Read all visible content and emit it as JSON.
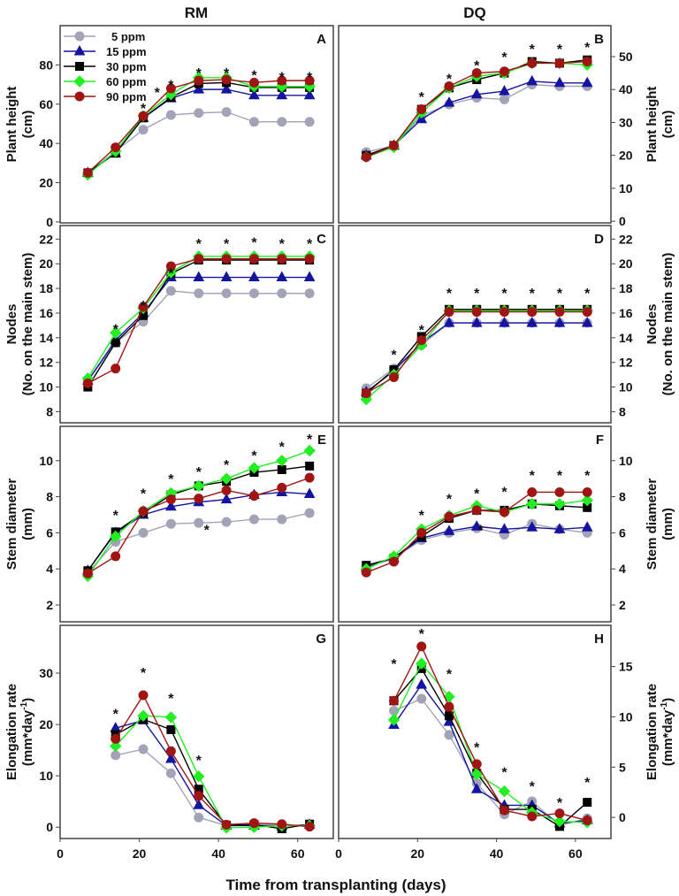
{
  "titles": {
    "left": "RM",
    "right": "DQ"
  },
  "xlabel": "Time from transplanting (days)",
  "series_style": [
    {
      "name": "5 ppm",
      "color": "#a3a3b8",
      "marker": "circle"
    },
    {
      "name": "15 ppm",
      "color": "#1414a0",
      "marker": "triangle"
    },
    {
      "name": "30 ppm",
      "color": "#000000",
      "marker": "square"
    },
    {
      "name": "60 ppm",
      "color": "#22ee22",
      "marker": "diamond"
    },
    {
      "name": "90 ppm",
      "color": "#a01414",
      "marker": "circle"
    }
  ],
  "chart_data": [
    {
      "panel": "A",
      "type": "line",
      "cultivar": "RM",
      "ylabel": [
        "Plant height",
        "(cm)"
      ],
      "yaxis_side": "left",
      "xlim": [
        0,
        69
      ],
      "ylim": [
        -0.5,
        100
      ],
      "yticks": [
        0,
        20,
        40,
        60,
        80
      ],
      "xticks": [
        0,
        20,
        40,
        60
      ],
      "x": [
        7,
        14,
        21,
        28,
        35,
        42,
        49,
        56,
        63
      ],
      "series": [
        {
          "name": "5 ppm",
          "values": [
            25,
            36,
            47,
            54.5,
            55.5,
            56,
            51,
            51,
            51
          ]
        },
        {
          "name": "15 ppm",
          "values": [
            25,
            35,
            53,
            63,
            67.5,
            67.5,
            64.5,
            64.5,
            64.5
          ]
        },
        {
          "name": "30 ppm",
          "values": [
            25,
            35,
            53,
            63.5,
            70.5,
            71,
            68.5,
            68.5,
            68.5
          ]
        },
        {
          "name": "60 ppm",
          "values": [
            24,
            36,
            54,
            65,
            73.5,
            73.5,
            69,
            69,
            69
          ]
        },
        {
          "name": "90 ppm",
          "values": [
            25,
            38,
            54,
            68,
            72,
            72.5,
            71,
            72,
            72
          ]
        }
      ],
      "significance": [
        [
          21,
          59
        ],
        [
          24.5,
          67
        ],
        [
          28,
          71
        ],
        [
          35,
          77
        ],
        [
          42,
          77
        ],
        [
          49,
          76
        ],
        [
          56,
          75
        ],
        [
          63,
          75
        ]
      ],
      "legend": "top-left"
    },
    {
      "panel": "B",
      "type": "line",
      "cultivar": "DQ",
      "ylabel": [
        "Plant height",
        "(cm)"
      ],
      "yaxis_side": "right",
      "xlim": [
        0,
        69
      ],
      "ylim": [
        -0.5,
        59.4
      ],
      "yticks": [
        0,
        10,
        20,
        30,
        40,
        50
      ],
      "xticks": [
        0,
        20,
        40,
        60
      ],
      "x": [
        7,
        14,
        21,
        28,
        35,
        42,
        49,
        56,
        63
      ],
      "series": [
        {
          "name": "5 ppm",
          "values": [
            21,
            23,
            32,
            35.5,
            37.5,
            37,
            41.5,
            41,
            41
          ]
        },
        {
          "name": "15 ppm",
          "values": [
            20,
            23,
            31,
            36,
            38.5,
            39.5,
            42.5,
            42,
            42
          ]
        },
        {
          "name": "30 ppm",
          "values": [
            20,
            23,
            34,
            40.5,
            43,
            45,
            48.5,
            48,
            49
          ]
        },
        {
          "name": "60 ppm",
          "values": [
            19.5,
            22.5,
            33,
            40.5,
            44,
            45,
            48,
            48,
            47.5
          ]
        },
        {
          "name": "90 ppm",
          "values": [
            19.5,
            23,
            34,
            41,
            45,
            45.5,
            48,
            48,
            48.5
          ]
        }
      ],
      "significance": [
        [
          21,
          38.5
        ],
        [
          28,
          44
        ],
        [
          35,
          48
        ],
        [
          42,
          50.5
        ],
        [
          49,
          53
        ],
        [
          56,
          53
        ],
        [
          63,
          53.5
        ]
      ]
    },
    {
      "panel": "C",
      "type": "line",
      "cultivar": "RM",
      "ylabel": [
        "Nodes",
        "(No. on the main stem)"
      ],
      "yaxis_side": "left",
      "xlim": [
        0,
        69
      ],
      "ylim": [
        7.1,
        23.1
      ],
      "yticks": [
        8,
        10,
        12,
        14,
        16,
        18,
        20,
        22
      ],
      "xticks": [
        0,
        20,
        40,
        60
      ],
      "x": [
        7,
        14,
        21,
        28,
        35,
        42,
        49,
        56,
        63
      ],
      "series": [
        {
          "name": "5 ppm",
          "values": [
            10.5,
            13.6,
            15.3,
            17.8,
            17.6,
            17.6,
            17.6,
            17.6,
            17.6
          ]
        },
        {
          "name": "15 ppm",
          "values": [
            10.5,
            13.8,
            16,
            18.9,
            18.9,
            18.9,
            18.9,
            18.9,
            18.9
          ]
        },
        {
          "name": "30 ppm",
          "values": [
            10,
            13.6,
            15.8,
            19.2,
            20.3,
            20.3,
            20.3,
            20.3,
            20.3
          ]
        },
        {
          "name": "60 ppm",
          "values": [
            10.7,
            14.4,
            16.4,
            19.3,
            20.6,
            20.6,
            20.6,
            20.6,
            20.6
          ]
        },
        {
          "name": "90 ppm",
          "values": [
            10.3,
            11.5,
            16.5,
            19.8,
            20.4,
            20.4,
            20.4,
            20.4,
            20.4
          ]
        }
      ],
      "significance": [
        [
          14,
          14.9
        ],
        [
          21,
          16.8
        ],
        [
          28,
          19.4
        ],
        [
          35,
          21.8
        ],
        [
          42,
          21.8
        ],
        [
          49,
          21.9
        ],
        [
          56,
          21.8
        ],
        [
          63,
          21.8
        ]
      ]
    },
    {
      "panel": "D",
      "type": "line",
      "cultivar": "DQ",
      "ylabel": [
        "Nodes",
        "(No. on the main stem)"
      ],
      "yaxis_side": "right",
      "xlim": [
        0,
        69
      ],
      "ylim": [
        7.1,
        23.1
      ],
      "yticks": [
        8,
        10,
        12,
        14,
        16,
        18,
        20,
        22
      ],
      "xticks": [
        0,
        20,
        40,
        60
      ],
      "x": [
        7,
        14,
        21,
        28,
        35,
        42,
        49,
        56,
        63
      ],
      "series": [
        {
          "name": "5 ppm",
          "values": [
            9.9,
            11.5,
            13.4,
            15.2,
            15.2,
            15.2,
            15.2,
            15.2,
            15.2
          ]
        },
        {
          "name": "15 ppm",
          "values": [
            9.6,
            11.3,
            13.6,
            15.2,
            15.2,
            15.2,
            15.2,
            15.2,
            15.2
          ]
        },
        {
          "name": "30 ppm",
          "values": [
            9.5,
            11.4,
            14.1,
            16.3,
            16.3,
            16.3,
            16.3,
            16.3,
            16.3
          ]
        },
        {
          "name": "60 ppm",
          "values": [
            9.0,
            11.0,
            13.4,
            16.2,
            16.2,
            16.2,
            16.2,
            16.2,
            16.2
          ]
        },
        {
          "name": "90 ppm",
          "values": [
            9.5,
            10.8,
            13.8,
            16.1,
            16.1,
            16.1,
            16.1,
            16.1,
            16.1
          ]
        }
      ],
      "significance": [
        [
          14,
          12.8
        ],
        [
          21,
          14.8
        ],
        [
          28,
          17.8
        ],
        [
          35,
          17.8
        ],
        [
          42,
          17.8
        ],
        [
          49,
          17.8
        ],
        [
          56,
          17.8
        ],
        [
          63,
          17.8
        ]
      ]
    },
    {
      "panel": "E",
      "type": "line",
      "cultivar": "RM",
      "ylabel": [
        "Stem diameter",
        "(mm)"
      ],
      "yaxis_side": "left",
      "xlim": [
        0,
        69
      ],
      "ylim": [
        1.07,
        11.9
      ],
      "yticks": [
        2,
        4,
        6,
        8,
        10
      ],
      "xticks": [
        0,
        20,
        40,
        60
      ],
      "x": [
        7,
        14,
        21,
        28,
        35,
        42,
        49,
        56,
        63
      ],
      "series": [
        {
          "name": "5 ppm",
          "values": [
            3.8,
            5.5,
            6.0,
            6.5,
            6.55,
            6.6,
            6.75,
            6.75,
            7.1
          ]
        },
        {
          "name": "15 ppm",
          "values": [
            3.9,
            6.0,
            7.0,
            7.45,
            7.7,
            7.85,
            8.1,
            8.25,
            8.15
          ]
        },
        {
          "name": "30 ppm",
          "values": [
            3.9,
            6.05,
            7.1,
            8.1,
            8.6,
            8.85,
            9.35,
            9.5,
            9.7
          ]
        },
        {
          "name": "60 ppm",
          "values": [
            3.6,
            5.8,
            7.2,
            8.2,
            8.6,
            9.0,
            9.6,
            10.0,
            10.55
          ]
        },
        {
          "name": "90 ppm",
          "values": [
            3.75,
            4.7,
            7.2,
            7.85,
            7.9,
            8.35,
            8.05,
            8.5,
            9.05
          ]
        }
      ],
      "significance": [
        [
          14,
          7.1
        ],
        [
          21,
          8.3
        ],
        [
          28,
          9.1
        ],
        [
          35,
          9.5
        ],
        [
          42,
          9.9
        ],
        [
          49,
          10.4
        ],
        [
          56,
          10.9
        ],
        [
          63,
          11.3
        ],
        [
          37,
          6.3
        ]
      ]
    },
    {
      "panel": "F",
      "type": "line",
      "cultivar": "DQ",
      "ylabel": [
        "Stem diameter",
        "(mm)"
      ],
      "yaxis_side": "right",
      "xlim": [
        0,
        69
      ],
      "ylim": [
        1.07,
        11.9
      ],
      "yticks": [
        2,
        4,
        6,
        8,
        10
      ],
      "xticks": [
        0,
        20,
        40,
        60
      ],
      "x": [
        7,
        14,
        21,
        28,
        35,
        42,
        49,
        56,
        63
      ],
      "series": [
        {
          "name": "5 ppm",
          "values": [
            4.1,
            4.6,
            5.6,
            6.0,
            6.25,
            5.9,
            6.5,
            6.2,
            6.0
          ]
        },
        {
          "name": "15 ppm",
          "values": [
            4.1,
            4.6,
            5.7,
            6.1,
            6.35,
            6.2,
            6.3,
            6.2,
            6.3
          ]
        },
        {
          "name": "30 ppm",
          "values": [
            4.2,
            4.6,
            5.8,
            6.8,
            7.25,
            7.25,
            7.6,
            7.5,
            7.4
          ]
        },
        {
          "name": "60 ppm",
          "values": [
            4.0,
            4.7,
            6.2,
            6.95,
            7.5,
            7.15,
            7.6,
            7.6,
            7.8
          ]
        },
        {
          "name": "90 ppm",
          "values": [
            3.8,
            4.4,
            6.0,
            6.9,
            7.25,
            7.15,
            8.25,
            8.25,
            8.25
          ]
        }
      ],
      "significance": [
        [
          21,
          7.1
        ],
        [
          28,
          8.0
        ],
        [
          35,
          8.3
        ],
        [
          42,
          8.4
        ],
        [
          49,
          9.3
        ],
        [
          56,
          9.3
        ],
        [
          63,
          9.3
        ],
        [
          36,
          6.3
        ]
      ]
    },
    {
      "panel": "G",
      "type": "line",
      "cultivar": "RM",
      "ylabel": [
        "Elongation rate",
        "(mm*day",
        "-1",
        ")"
      ],
      "yaxis_side": "left",
      "xlim": [
        0,
        69
      ],
      "ylim": [
        -2.2,
        39.3
      ],
      "yticks": [
        0,
        10,
        20,
        30
      ],
      "xticks": [
        0,
        20,
        40,
        60
      ],
      "x": [
        14,
        21,
        28,
        35,
        42,
        49,
        56,
        63
      ],
      "series": [
        {
          "name": "5 ppm",
          "values": [
            14,
            15.2,
            10.5,
            1.9,
            0.3,
            0.5,
            0.4,
            0.3
          ]
        },
        {
          "name": "15 ppm",
          "values": [
            19.3,
            20.8,
            13.3,
            4.3,
            0.3,
            0.3,
            0.2,
            0.5
          ]
        },
        {
          "name": "30 ppm",
          "values": [
            18,
            21,
            19,
            7.4,
            0.4,
            0.5,
            -0.3,
            0.6
          ]
        },
        {
          "name": "60 ppm",
          "values": [
            15.8,
            21.7,
            21.4,
            9.9,
            -0.1,
            0,
            0.3,
            0.3
          ]
        },
        {
          "name": "90 ppm",
          "values": [
            17.2,
            25.7,
            14.8,
            6.1,
            0.5,
            0.8,
            0.6,
            0.1
          ]
        }
      ],
      "significance": [
        [
          14,
          22.5
        ],
        [
          21,
          30.5
        ],
        [
          28,
          25.5
        ],
        [
          35,
          13.5
        ]
      ]
    },
    {
      "panel": "H",
      "type": "line",
      "cultivar": "DQ",
      "ylabel": [
        "Elongation rate",
        "(mm*day",
        "-1",
        ")"
      ],
      "yaxis_side": "right",
      "xlim": [
        0,
        69
      ],
      "ylim": [
        -2.1,
        19.1
      ],
      "yticks": [
        0,
        5,
        10,
        15
      ],
      "xticks": [
        0,
        20,
        40,
        60
      ],
      "x": [
        14,
        21,
        28,
        35,
        42,
        49,
        56,
        63
      ],
      "series": [
        {
          "name": "5 ppm",
          "values": [
            10.6,
            11.8,
            8.2,
            3.4,
            0.3,
            1.6,
            -0.8,
            -0.1
          ]
        },
        {
          "name": "15 ppm",
          "values": [
            9.2,
            13.2,
            9.5,
            2.8,
            1.2,
            1.2,
            -0.6,
            -0.3
          ]
        },
        {
          "name": "30 ppm",
          "values": [
            11.6,
            14.8,
            10.1,
            4.4,
            0.8,
            0.8,
            -0.9,
            1.5
          ]
        },
        {
          "name": "60 ppm",
          "values": [
            9.7,
            15.3,
            12.0,
            4.3,
            2.6,
            0.5,
            -0.4,
            -0.5
          ]
        },
        {
          "name": "90 ppm",
          "values": [
            11.6,
            17.0,
            11.0,
            5.3,
            0.7,
            0.1,
            0.4,
            -0.3
          ]
        }
      ],
      "significance": [
        [
          14,
          15.5
        ],
        [
          21,
          18.5
        ],
        [
          28,
          14.5
        ],
        [
          35,
          7.2
        ],
        [
          42,
          4.7
        ],
        [
          49,
          3.3
        ],
        [
          56,
          1.7
        ],
        [
          63,
          3.7
        ]
      ]
    }
  ]
}
